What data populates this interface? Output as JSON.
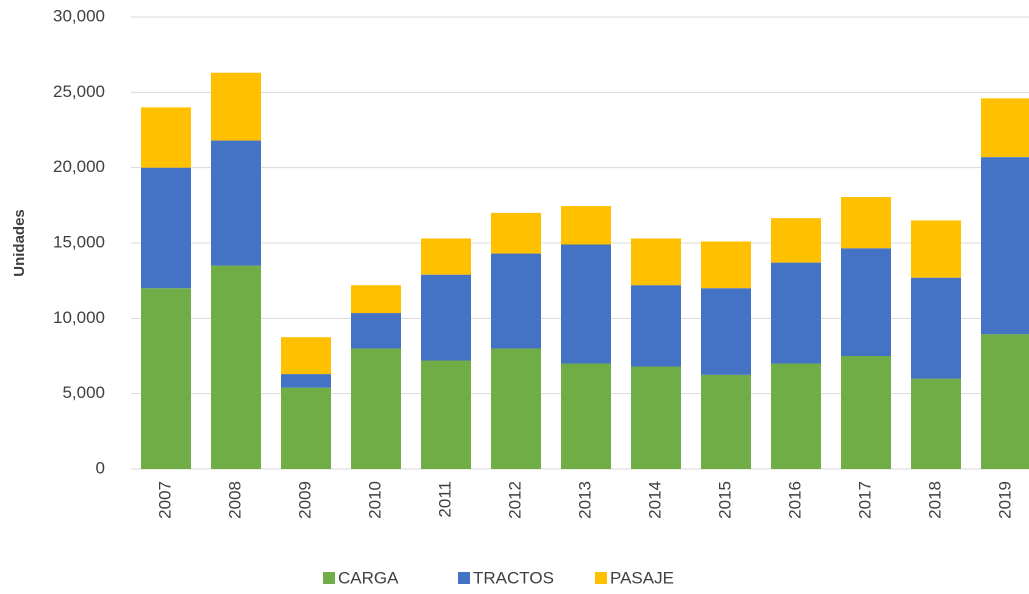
{
  "chart_data": {
    "type": "stacked_bar",
    "y_label": "Unidades",
    "categories": [
      "2007",
      "2008",
      "2009",
      "2010",
      "2011",
      "2012",
      "2013",
      "2014",
      "2015",
      "2016",
      "2017",
      "2018",
      "2019"
    ],
    "series": [
      {
        "name": "CARGA",
        "color": "#70ad47",
        "values": [
          12000,
          13500,
          5400,
          8000,
          7200,
          8000,
          7000,
          6800,
          6250,
          7000,
          7500,
          6000,
          8950
        ]
      },
      {
        "name": "TRACTOS",
        "color": "#4472c4",
        "values": [
          8000,
          8300,
          900,
          2350,
          5700,
          6300,
          7900,
          5400,
          5750,
          6700,
          7150,
          6700,
          11750
        ]
      },
      {
        "name": "PASAJE",
        "color": "#ffc000",
        "values": [
          4000,
          4500,
          2450,
          1850,
          2400,
          2700,
          2550,
          3100,
          3100,
          2950,
          3400,
          3800,
          3900
        ]
      }
    ],
    "ylim": [
      0,
      30000
    ],
    "yticks": [
      0,
      {
        "value": 5000,
        "label": "5,000"
      },
      {
        "value": 10000,
        "label": "10,000"
      },
      {
        "value": 15000,
        "label": "15,000"
      },
      {
        "value": 20000,
        "label": "20,000"
      },
      {
        "value": 25000,
        "label": "25,000"
      },
      {
        "value": 30000,
        "label": "30,000"
      }
    ],
    "grid": true,
    "legend": "bottom"
  }
}
